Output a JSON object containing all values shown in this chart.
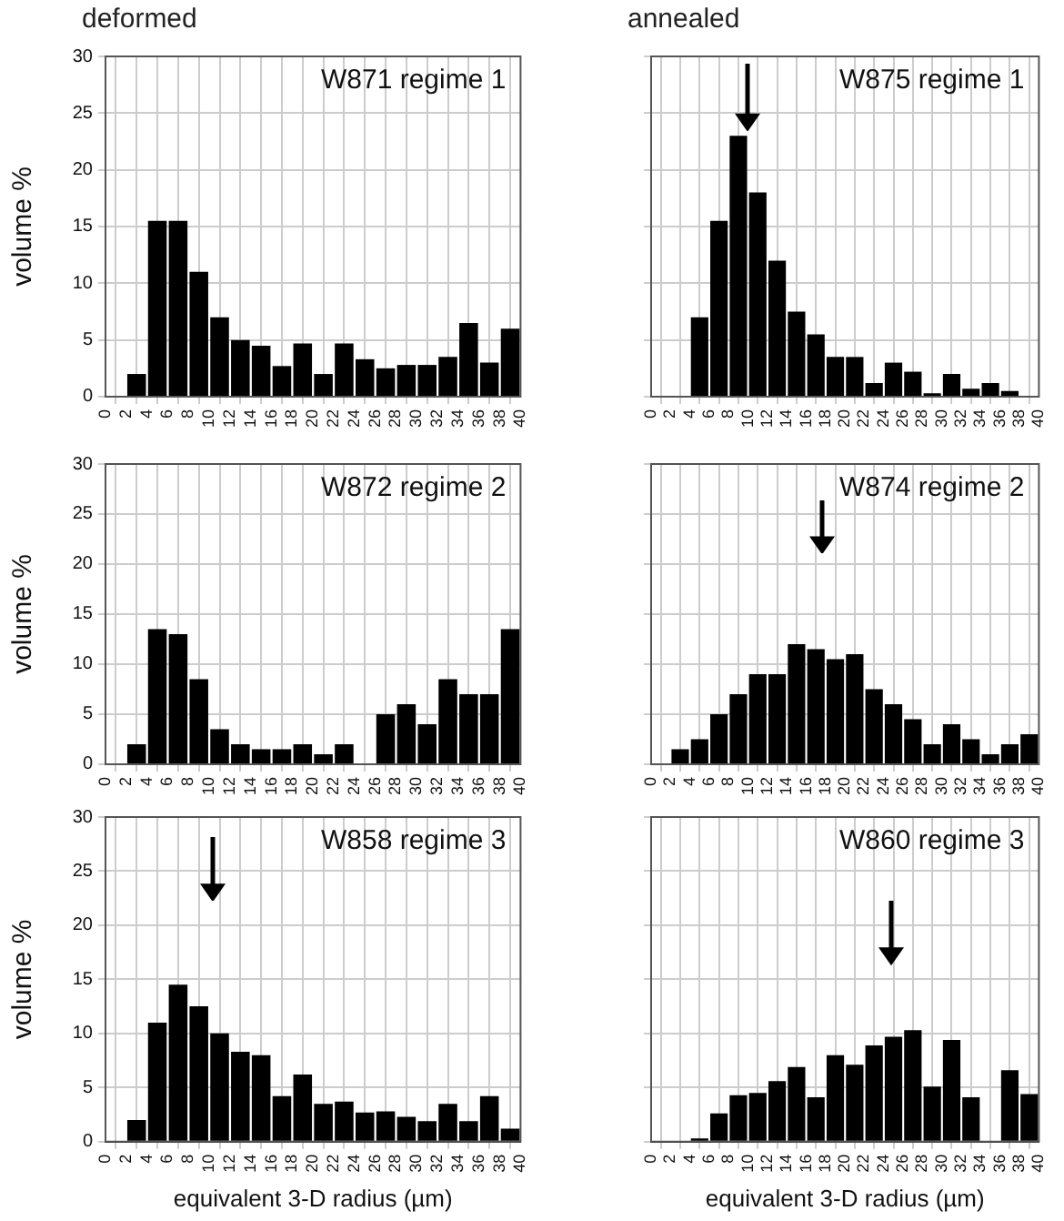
{
  "chart_data": [
    {
      "type": "histogram",
      "title": "W871 regime 1",
      "annotations": [
        "deformed"
      ],
      "ylabel": "volume %",
      "bins": [
        0,
        2,
        4,
        6,
        8,
        10,
        12,
        14,
        16,
        18,
        20,
        22,
        24,
        26,
        28,
        30,
        32,
        34,
        36,
        38,
        40
      ],
      "values": [
        0,
        2,
        15.5,
        15.5,
        11,
        7,
        5,
        4.5,
        2.7,
        4.7,
        2,
        4.7,
        3.3,
        2.5,
        2.8,
        2.8,
        3.5,
        6.5,
        3,
        6
      ],
      "color": "#000000",
      "xlim": [
        0,
        40
      ],
      "xticks": [
        0,
        2,
        4,
        6,
        8,
        10,
        12,
        14,
        16,
        18,
        20,
        22,
        24,
        26,
        28,
        30,
        32,
        34,
        36,
        38,
        40
      ],
      "ylim": [
        0,
        30
      ],
      "yticks": [
        0,
        5,
        10,
        15,
        20,
        25,
        30
      ],
      "grid": true
    },
    {
      "type": "histogram",
      "title": "W875 regime 1",
      "annotations": [
        "annealed"
      ],
      "bins": [
        0,
        2,
        4,
        6,
        8,
        10,
        12,
        14,
        16,
        18,
        20,
        22,
        24,
        26,
        28,
        30,
        32,
        34,
        36,
        38,
        40
      ],
      "values": [
        0,
        0,
        7,
        15.5,
        23,
        18,
        12,
        7.5,
        5.5,
        3.5,
        3.5,
        1.2,
        3,
        2.2,
        0.3,
        2,
        0.7,
        1.2,
        0.5,
        0
      ],
      "color": "#000000",
      "xlim": [
        0,
        40
      ],
      "xticks": [
        0,
        2,
        4,
        6,
        8,
        10,
        12,
        14,
        16,
        18,
        20,
        22,
        24,
        26,
        28,
        30,
        32,
        34,
        36,
        38,
        40
      ],
      "ylim": [
        0,
        30
      ],
      "yticks": [
        0,
        5,
        10,
        15,
        20,
        25,
        30
      ],
      "grid": true,
      "tick_labels": "x"
    },
    {
      "type": "histogram",
      "title": "W872 regime 2",
      "ylabel": "volume %",
      "bins": [
        0,
        2,
        4,
        6,
        8,
        10,
        12,
        14,
        16,
        18,
        20,
        22,
        24,
        26,
        28,
        30,
        32,
        34,
        36,
        38,
        40
      ],
      "values": [
        0,
        2,
        13.5,
        13,
        8.5,
        3.5,
        2,
        1.5,
        1.5,
        2,
        1,
        2,
        0,
        5,
        6,
        4,
        8.5,
        7,
        7,
        13.5
      ],
      "color": "#000000",
      "xlim": [
        0,
        40
      ],
      "xticks": [
        0,
        2,
        4,
        6,
        8,
        10,
        12,
        14,
        16,
        18,
        20,
        22,
        24,
        26,
        28,
        30,
        32,
        34,
        36,
        38,
        40
      ],
      "ylim": [
        0,
        30
      ],
      "yticks": [
        0,
        5,
        10,
        15,
        20,
        25,
        30
      ],
      "grid": true
    },
    {
      "type": "histogram",
      "title": "W874 regime 2",
      "bins": [
        0,
        2,
        4,
        6,
        8,
        10,
        12,
        14,
        16,
        18,
        20,
        22,
        24,
        26,
        28,
        30,
        32,
        34,
        36,
        38,
        40
      ],
      "values": [
        0,
        1.5,
        2.5,
        5,
        7,
        9,
        9,
        12,
        11.5,
        10.5,
        11,
        7.5,
        6,
        4.5,
        2,
        4,
        2.5,
        1,
        2,
        3
      ],
      "color": "#000000",
      "xlim": [
        0,
        40
      ],
      "xticks": [
        0,
        2,
        4,
        6,
        8,
        10,
        12,
        14,
        16,
        18,
        20,
        22,
        24,
        26,
        28,
        30,
        32,
        34,
        36,
        38,
        40
      ],
      "ylim": [
        0,
        30
      ],
      "yticks": [
        0,
        5,
        10,
        15,
        20,
        25,
        30
      ],
      "grid": true,
      "tick_labels": "x"
    },
    {
      "type": "histogram",
      "title": "W858 regime 3",
      "xlabel": "equivalent 3-D radius (µm)",
      "ylabel": "volume %",
      "bins": [
        0,
        2,
        4,
        6,
        8,
        10,
        12,
        14,
        16,
        18,
        20,
        22,
        24,
        26,
        28,
        30,
        32,
        34,
        36,
        38,
        40
      ],
      "values": [
        0,
        2,
        11,
        14.5,
        12.5,
        10,
        8.3,
        8,
        4.2,
        6.2,
        3.5,
        3.7,
        2.7,
        2.8,
        2.3,
        1.9,
        3.5,
        1.9,
        4.2,
        1.2
      ],
      "color": "#000000",
      "xlim": [
        0,
        40
      ],
      "xticks": [
        0,
        2,
        4,
        6,
        8,
        10,
        12,
        14,
        16,
        18,
        20,
        22,
        24,
        26,
        28,
        30,
        32,
        34,
        36,
        38,
        40
      ],
      "ylim": [
        0,
        30
      ],
      "yticks": [
        0,
        5,
        10,
        15,
        20,
        25,
        30
      ],
      "grid": true
    },
    {
      "type": "histogram",
      "title": "W860 regime 3",
      "xlabel": "equivalent 3-D radius (µm)",
      "bins": [
        0,
        2,
        4,
        6,
        8,
        10,
        12,
        14,
        16,
        18,
        20,
        22,
        24,
        26,
        28,
        30,
        32,
        34,
        36,
        38,
        40
      ],
      "values": [
        0,
        0,
        0.3,
        2.6,
        4.3,
        4.5,
        5.6,
        6.9,
        4.1,
        8,
        7.1,
        8.9,
        9.7,
        10.3,
        5.1,
        9.4,
        4.1,
        0,
        6.6,
        4.4
      ],
      "color": "#000000",
      "xlim": [
        0,
        40
      ],
      "xticks": [
        0,
        2,
        4,
        6,
        8,
        10,
        12,
        14,
        16,
        18,
        20,
        22,
        24,
        26,
        28,
        30,
        32,
        34,
        36,
        38,
        40
      ],
      "ylim": [
        0,
        30
      ],
      "yticks": [
        0,
        5,
        10,
        15,
        20,
        25,
        30
      ],
      "grid": true,
      "tick_labels": "x"
    }
  ]
}
